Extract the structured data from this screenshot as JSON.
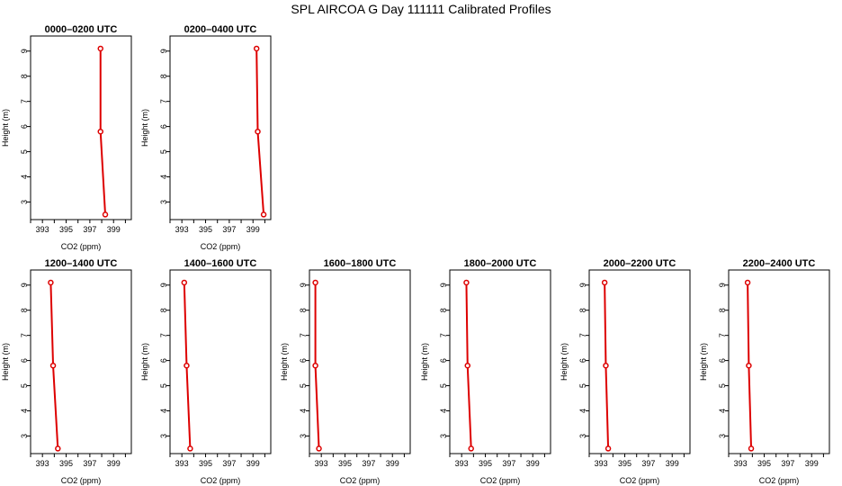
{
  "title": "SPL AIRCOA G  Day 111111  Calibrated Profiles",
  "colors": {
    "series": "#dd0000",
    "axis": "#000000"
  },
  "chart_data": [
    {
      "type": "line",
      "title": "0000–0200 UTC",
      "xlabel": "CO2 (ppm)",
      "ylabel": "Height (m)",
      "xlim": [
        392,
        400.5
      ],
      "ylim": [
        2.3,
        9.6
      ],
      "xticks": [
        393,
        395,
        397,
        399
      ],
      "yticks": [
        3,
        4,
        5,
        6,
        7,
        8,
        9
      ],
      "points": [
        {
          "x": 397.9,
          "y": 9.1
        },
        {
          "x": 397.9,
          "y": 5.8
        },
        {
          "x": 398.3,
          "y": 2.5
        }
      ]
    },
    {
      "type": "line",
      "title": "0200–0400 UTC",
      "xlabel": "CO2 (ppm)",
      "ylabel": "Height (m)",
      "xlim": [
        392,
        400.5
      ],
      "ylim": [
        2.3,
        9.6
      ],
      "xticks": [
        393,
        395,
        397,
        399
      ],
      "yticks": [
        3,
        4,
        5,
        6,
        7,
        8,
        9
      ],
      "points": [
        {
          "x": 399.3,
          "y": 9.1
        },
        {
          "x": 399.4,
          "y": 5.8
        },
        {
          "x": 399.9,
          "y": 2.5
        }
      ]
    },
    {
      "type": "line",
      "title": "1200–1400 UTC",
      "xlabel": "CO2 (ppm)",
      "ylabel": "Height (m)",
      "xlim": [
        392,
        400.5
      ],
      "ylim": [
        2.3,
        9.6
      ],
      "xticks": [
        393,
        395,
        397,
        399
      ],
      "yticks": [
        3,
        4,
        5,
        6,
        7,
        8,
        9
      ],
      "points": [
        {
          "x": 393.7,
          "y": 9.1
        },
        {
          "x": 393.9,
          "y": 5.8
        },
        {
          "x": 394.3,
          "y": 2.5
        }
      ]
    },
    {
      "type": "line",
      "title": "1400–1600 UTC",
      "xlabel": "CO2 (ppm)",
      "ylabel": "Height (m)",
      "xlim": [
        392,
        400.5
      ],
      "ylim": [
        2.3,
        9.6
      ],
      "xticks": [
        393,
        395,
        397,
        399
      ],
      "yticks": [
        3,
        4,
        5,
        6,
        7,
        8,
        9
      ],
      "points": [
        {
          "x": 393.2,
          "y": 9.1
        },
        {
          "x": 393.4,
          "y": 5.8
        },
        {
          "x": 393.7,
          "y": 2.5
        }
      ]
    },
    {
      "type": "line",
      "title": "1600–1800 UTC",
      "xlabel": "CO2 (ppm)",
      "ylabel": "Height (m)",
      "xlim": [
        392,
        400.5
      ],
      "ylim": [
        2.3,
        9.6
      ],
      "xticks": [
        393,
        395,
        397,
        399
      ],
      "yticks": [
        3,
        4,
        5,
        6,
        7,
        8,
        9
      ],
      "points": [
        {
          "x": 392.5,
          "y": 9.1
        },
        {
          "x": 392.5,
          "y": 5.8
        },
        {
          "x": 392.8,
          "y": 2.5
        }
      ]
    },
    {
      "type": "line",
      "title": "1800–2000 UTC",
      "xlabel": "CO2 (ppm)",
      "ylabel": "Height (m)",
      "xlim": [
        392,
        400.5
      ],
      "ylim": [
        2.3,
        9.6
      ],
      "xticks": [
        393,
        395,
        397,
        399
      ],
      "yticks": [
        3,
        4,
        5,
        6,
        7,
        8,
        9
      ],
      "points": [
        {
          "x": 393.4,
          "y": 9.1
        },
        {
          "x": 393.5,
          "y": 5.8
        },
        {
          "x": 393.8,
          "y": 2.5
        }
      ]
    },
    {
      "type": "line",
      "title": "2000–2200 UTC",
      "xlabel": "CO2 (ppm)",
      "ylabel": "Height (m)",
      "xlim": [
        392,
        400.5
      ],
      "ylim": [
        2.3,
        9.6
      ],
      "xticks": [
        393,
        395,
        397,
        399
      ],
      "yticks": [
        3,
        4,
        5,
        6,
        7,
        8,
        9
      ],
      "points": [
        {
          "x": 393.3,
          "y": 9.1
        },
        {
          "x": 393.4,
          "y": 5.8
        },
        {
          "x": 393.6,
          "y": 2.5
        }
      ]
    },
    {
      "type": "line",
      "title": "2200–2400 UTC",
      "xlabel": "CO2 (ppm)",
      "ylabel": "Height (m)",
      "xlim": [
        392,
        400.5
      ],
      "ylim": [
        2.3,
        9.6
      ],
      "xticks": [
        393,
        395,
        397,
        399
      ],
      "yticks": [
        3,
        4,
        5,
        6,
        7,
        8,
        9
      ],
      "points": [
        {
          "x": 393.6,
          "y": 9.1
        },
        {
          "x": 393.7,
          "y": 5.8
        },
        {
          "x": 393.9,
          "y": 2.5
        }
      ]
    }
  ]
}
